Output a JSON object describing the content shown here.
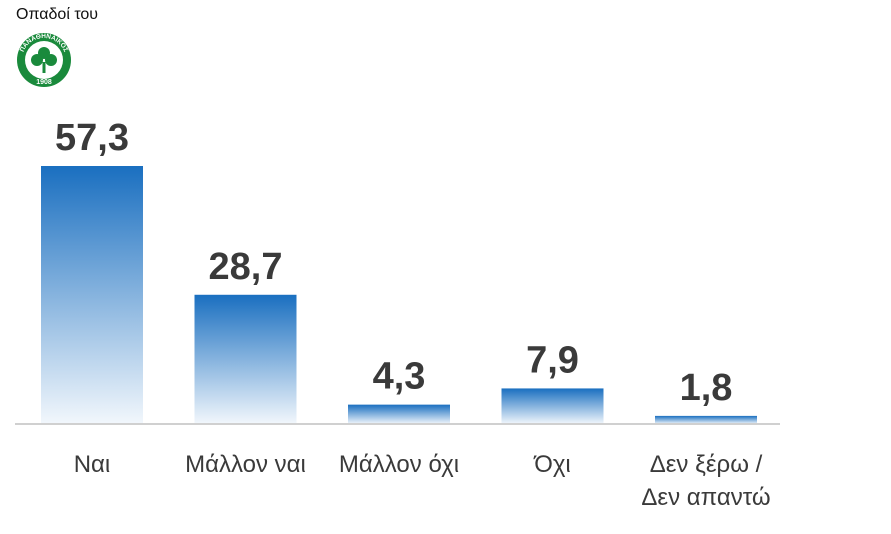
{
  "header": {
    "caption": "Οπαδοί του"
  },
  "logo": {
    "icon": "panathinaikos-clover-crest-icon",
    "ring_text": "ΠΑΝΑΘΗΝΑΙΚΟΣ",
    "year": "1908",
    "color": "#1a8a3c"
  },
  "chart_data": {
    "type": "bar",
    "title": "",
    "xlabel": "",
    "ylabel": "",
    "ylim": [
      0,
      57.3
    ],
    "grid": false,
    "legend": "none",
    "categories": [
      [
        "Ναι"
      ],
      [
        "Μάλλον ναι"
      ],
      [
        "Μάλλον όχι"
      ],
      [
        "Όχι"
      ],
      [
        "Δεν ξέρω /",
        "Δεν απαντώ"
      ]
    ],
    "values": [
      57.3,
      28.7,
      4.3,
      7.9,
      1.8
    ],
    "value_labels": [
      "57,3",
      "28,7",
      "4,3",
      "7,9",
      "1,8"
    ],
    "colors": {
      "bar_top": "#1a6fc0",
      "bar_bottom": "#f2f7fc",
      "axis": "#d0d0d0",
      "text": "#3a3a3a"
    }
  }
}
